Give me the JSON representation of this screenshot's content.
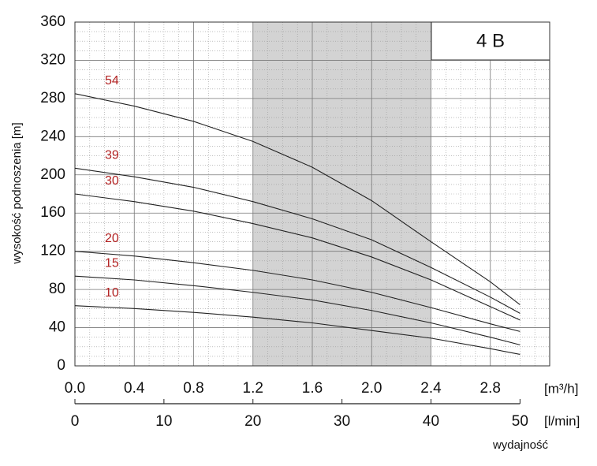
{
  "chart_data": {
    "type": "line",
    "title": "4 B",
    "ylabel": "wysokość podnoszenia [m]",
    "xunit": "[m³/h]",
    "x2unit": "[l/min]",
    "xlabel": "wydajność",
    "x": [
      0,
      0.4,
      0.8,
      1.2,
      1.6,
      2.0,
      2.4,
      2.8,
      3.0
    ],
    "series": [
      {
        "name": "54",
        "color": "#222222",
        "label_color": "#b22222",
        "values": [
          285,
          272,
          256,
          235,
          208,
          173,
          130,
          88,
          64
        ]
      },
      {
        "name": "39",
        "color": "#222222",
        "label_color": "#b22222",
        "values": [
          207,
          198,
          187,
          172,
          154,
          132,
          103,
          72,
          55
        ]
      },
      {
        "name": "30",
        "color": "#222222",
        "label_color": "#b22222",
        "values": [
          180,
          172,
          162,
          149,
          134,
          114,
          90,
          62,
          48
        ]
      },
      {
        "name": "20",
        "color": "#222222",
        "label_color": "#b22222",
        "values": [
          120,
          115,
          108,
          100,
          90,
          77,
          61,
          44,
          36
        ]
      },
      {
        "name": "15",
        "color": "#222222",
        "label_color": "#b22222",
        "values": [
          94,
          90,
          84,
          77,
          69,
          58,
          45,
          30,
          22
        ]
      },
      {
        "name": "10",
        "color": "#222222",
        "label_color": "#b22222",
        "values": [
          63,
          60,
          56,
          51,
          45,
          37,
          29,
          18,
          12
        ]
      }
    ],
    "shaded_range": [
      1.2,
      2.4
    ],
    "shade_color": "#d3d3d3",
    "xlim": [
      0,
      3.2
    ],
    "xticks": [
      {
        "value": 0,
        "label": "0.0"
      },
      0.4,
      0.8,
      1.2,
      1.6,
      {
        "value": 2,
        "label": "2.0"
      },
      2.4,
      2.8
    ],
    "x2lim": [
      0,
      53.333
    ],
    "x2ticks": [
      0,
      10,
      20,
      30,
      40,
      50
    ],
    "ylim": [
      0,
      360
    ],
    "yticks": [
      0,
      40,
      80,
      120,
      160,
      200,
      240,
      280,
      320,
      360
    ],
    "grid": true,
    "minor_grid": true
  }
}
